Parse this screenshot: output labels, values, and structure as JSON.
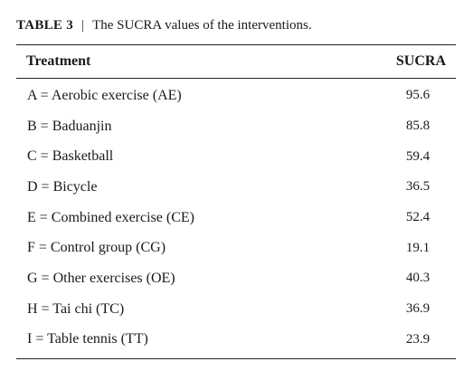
{
  "caption": {
    "label": "TABLE 3",
    "separator": "|",
    "text": "The SUCRA values of the interventions."
  },
  "table": {
    "headers": {
      "treatment": "Treatment",
      "sucra": "SUCRA"
    },
    "rows": [
      {
        "treatment": "A = Aerobic exercise (AE)",
        "sucra": "95.6"
      },
      {
        "treatment": "B = Baduanjin",
        "sucra": "85.8"
      },
      {
        "treatment": "C = Basketball",
        "sucra": "59.4"
      },
      {
        "treatment": "D = Bicycle",
        "sucra": "36.5"
      },
      {
        "treatment": "E = Combined exercise (CE)",
        "sucra": "52.4"
      },
      {
        "treatment": "F = Control group (CG)",
        "sucra": "19.1"
      },
      {
        "treatment": "G = Other exercises (OE)",
        "sucra": "40.3"
      },
      {
        "treatment": "H = Tai chi (TC)",
        "sucra": "36.9"
      },
      {
        "treatment": "I = Table tennis (TT)",
        "sucra": "23.9"
      }
    ]
  }
}
